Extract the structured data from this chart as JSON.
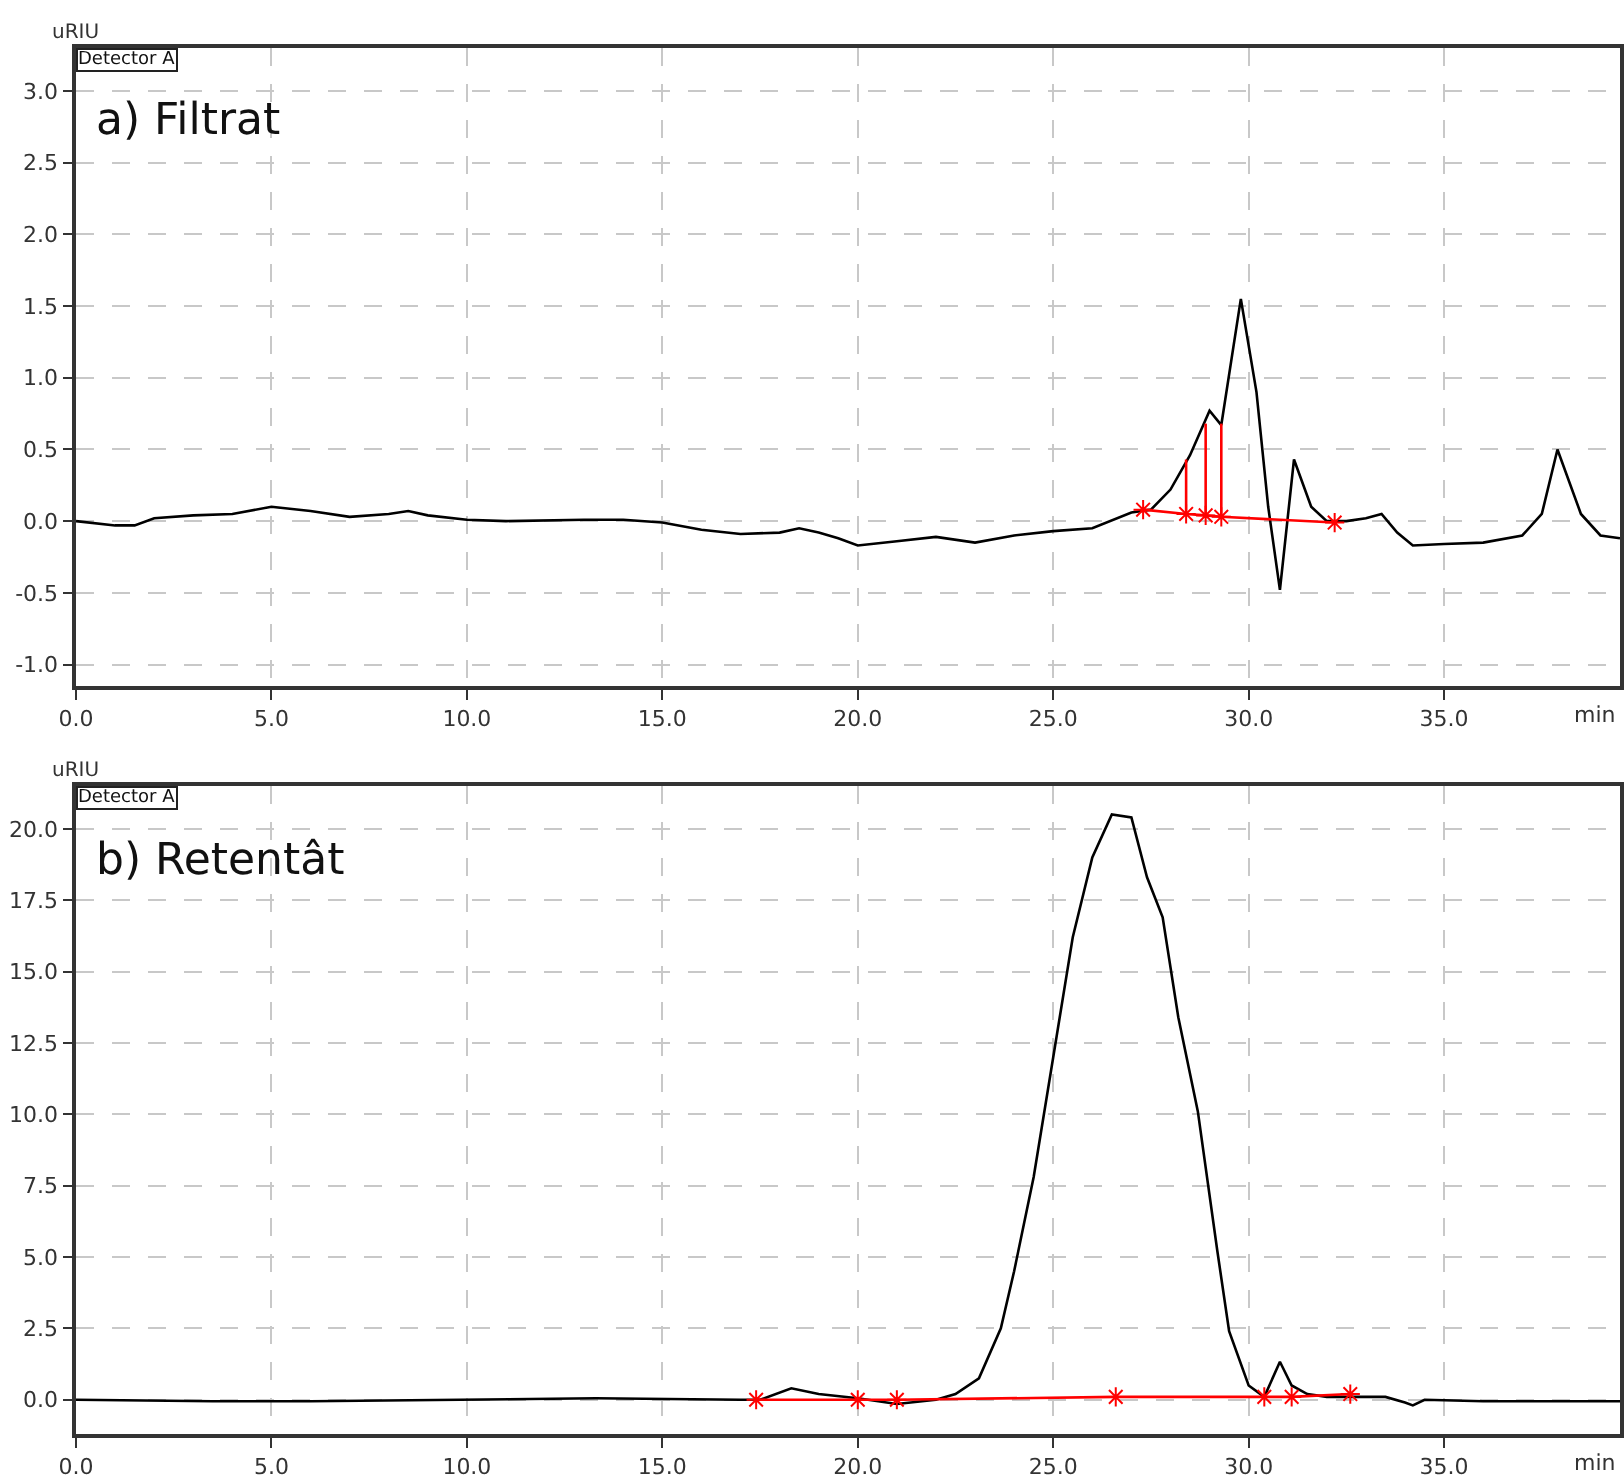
{
  "chart_data": [
    {
      "type": "line",
      "title": "a) Filtrat",
      "annotations": [
        "Detector A"
      ],
      "xlabel": "min",
      "ylabel": "uRIU",
      "grid": true,
      "line_style": "solid",
      "xlim": [
        0,
        39.5
      ],
      "ylim": [
        -1.15,
        3.3
      ],
      "xticks": [
        {
          "value": 0,
          "label": "0.0"
        },
        {
          "value": 5,
          "label": "5.0"
        },
        {
          "value": 10,
          "label": "10.0"
        },
        {
          "value": 15,
          "label": "15.0"
        },
        {
          "value": 20,
          "label": "20.0"
        },
        {
          "value": 25,
          "label": "25.0"
        },
        {
          "value": 30,
          "label": "30.0"
        },
        {
          "value": 35,
          "label": "35.0"
        }
      ],
      "yticks": [
        {
          "value": -1,
          "label": "-1.0"
        },
        {
          "value": -0.5,
          "label": "-0.5"
        },
        {
          "value": 0,
          "label": "0.0"
        },
        {
          "value": 0.5,
          "label": "0.5"
        },
        {
          "value": 1,
          "label": "1.0"
        },
        {
          "value": 1.5,
          "label": "1.5"
        },
        {
          "value": 2,
          "label": "2.0"
        },
        {
          "value": 2.5,
          "label": "2.5"
        },
        {
          "value": 3,
          "label": "3.0"
        }
      ],
      "series": [
        {
          "color": "#000000",
          "marker": "none",
          "x": [
            0,
            1,
            1.5,
            2,
            3,
            4,
            5,
            6,
            7,
            8,
            8.5,
            9,
            10,
            11,
            13,
            14,
            15,
            16,
            17,
            18,
            18.5,
            19,
            19.5,
            20,
            21,
            22,
            23,
            24,
            25,
            26,
            27,
            27.5,
            28,
            28.5,
            29,
            29.3,
            29.8,
            30.2,
            30.5,
            30.8,
            31.16,
            31.6,
            32,
            32.5,
            33,
            33.4,
            33.8,
            34.2,
            35,
            36,
            37,
            37.5,
            37.9,
            38.5,
            39,
            39.5
          ],
          "values": [
            0,
            -0.03,
            -0.03,
            0.02,
            0.04,
            0.05,
            0.1,
            0.07,
            0.03,
            0.05,
            0.07,
            0.04,
            0.01,
            0,
            0.01,
            0.01,
            -0.01,
            -0.06,
            -0.09,
            -0.08,
            -0.05,
            -0.08,
            -0.12,
            -0.17,
            -0.14,
            -0.11,
            -0.15,
            -0.1,
            -0.07,
            -0.05,
            0.06,
            0.08,
            0.22,
            0.46,
            0.77,
            0.67,
            1.55,
            0.9,
            0.1,
            -0.48,
            0.43,
            0.1,
            0,
            0,
            0.02,
            0.05,
            -0.08,
            -0.17,
            -0.16,
            -0.15,
            -0.1,
            0.05,
            0.5,
            0.05,
            -0.1,
            -0.12
          ]
        },
        {
          "color": "#ff0000",
          "marker": "cross",
          "x": [
            27.3,
            28.4,
            28.9,
            29.3,
            32.2
          ],
          "values": [
            0.08,
            0.05,
            0.04,
            0.03,
            -0.01
          ]
        },
        {
          "color": "#ff0000",
          "marker": "none",
          "x": [
            28.4,
            28.4,
            null,
            28.9,
            28.9,
            null,
            29.3,
            29.3
          ],
          "values": [
            0.05,
            0.43,
            null,
            0.04,
            0.68,
            null,
            0.03,
            0.68
          ]
        }
      ]
    },
    {
      "type": "line",
      "title": "b) Retentât",
      "annotations": [
        "Detector A"
      ],
      "xlabel": "min",
      "ylabel": "uRIU",
      "grid": true,
      "line_style": "solid",
      "xlim": [
        0,
        39.5
      ],
      "ylim": [
        -1.2,
        21.5
      ],
      "xticks": [
        {
          "value": 0,
          "label": "0.0"
        },
        {
          "value": 5,
          "label": "5.0"
        },
        {
          "value": 10,
          "label": "10.0"
        },
        {
          "value": 15,
          "label": "15.0"
        },
        {
          "value": 20,
          "label": "20.0"
        },
        {
          "value": 25,
          "label": "25.0"
        },
        {
          "value": 30,
          "label": "30.0"
        },
        {
          "value": 35,
          "label": "35.0"
        }
      ],
      "yticks": [
        {
          "value": 0,
          "label": "0.0"
        },
        {
          "value": 2.5,
          "label": "2.5"
        },
        {
          "value": 5,
          "label": "5.0"
        },
        {
          "value": 7.5,
          "label": "7.5"
        },
        {
          "value": 10,
          "label": "10.0"
        },
        {
          "value": 12.5,
          "label": "12.5"
        },
        {
          "value": 15,
          "label": "15.0"
        },
        {
          "value": 17.5,
          "label": "17.5"
        },
        {
          "value": 20,
          "label": "20.0"
        }
      ],
      "series": [
        {
          "color": "#000000",
          "marker": "none",
          "x": [
            0,
            3.5,
            6,
            13.3,
            17,
            17.5,
            18.3,
            19,
            20,
            21,
            22,
            22.5,
            23.1,
            23.66,
            24,
            24.5,
            25,
            25.5,
            26,
            26.5,
            27,
            27.4,
            27.8,
            28.2,
            28.7,
            29.2,
            29.5,
            30,
            30.4,
            30.8,
            31.1,
            31.5,
            32,
            33.5,
            34,
            34.2,
            34.5,
            36,
            39.5
          ],
          "values": [
            0,
            -0.05,
            -0.05,
            0.05,
            0,
            0,
            0.4,
            0.2,
            0.05,
            -0.15,
            0,
            0.2,
            0.75,
            2.5,
            4.5,
            7.8,
            12.0,
            16.2,
            19.0,
            20.5,
            20.4,
            18.3,
            16.9,
            13.4,
            10.1,
            5.2,
            2.4,
            0.5,
            0.1,
            1.33,
            0.5,
            0.2,
            0.1,
            0.1,
            -0.1,
            -0.2,
            0,
            -0.05,
            -0.05
          ]
        },
        {
          "color": "#ff0000",
          "marker": "cross",
          "x": [
            17.4,
            20.0,
            21.0,
            26.6,
            30.4,
            31.1,
            32.6
          ],
          "values": [
            0,
            0,
            0,
            0.1,
            0.1,
            0.1,
            0.2
          ]
        }
      ]
    }
  ]
}
